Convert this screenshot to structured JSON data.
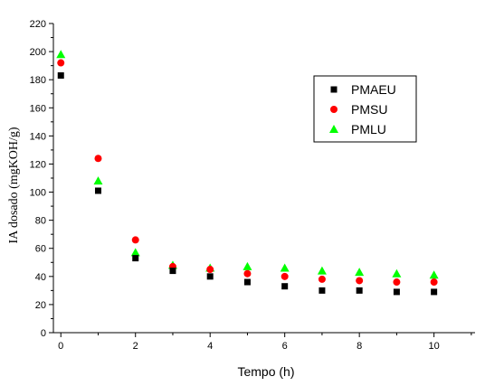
{
  "chart_data": {
    "type": "scatter",
    "xlabel": "Tempo (h)",
    "ylabel": "IA dosado (mgKOH/g)",
    "xlim": [
      -0.2,
      11.1
    ],
    "ylim": [
      0,
      220
    ],
    "xticks": [
      0,
      2,
      4,
      6,
      8,
      10
    ],
    "yticks": [
      0,
      20,
      40,
      60,
      80,
      100,
      120,
      140,
      160,
      180,
      200,
      220
    ],
    "grid": false,
    "legend_position": "top-right",
    "series": [
      {
        "name": "PMAEU",
        "marker": "square",
        "color": "#000000",
        "points": [
          [
            0,
            183
          ],
          [
            1,
            101
          ],
          [
            2,
            53
          ],
          [
            3,
            44
          ],
          [
            4,
            40
          ],
          [
            5,
            36
          ],
          [
            6,
            33
          ],
          [
            7,
            30
          ],
          [
            8,
            30
          ],
          [
            9,
            29
          ],
          [
            10,
            29
          ]
        ]
      },
      {
        "name": "PMSU",
        "marker": "circle",
        "color": "#ff0000",
        "points": [
          [
            0,
            192
          ],
          [
            1,
            124
          ],
          [
            2,
            66
          ],
          [
            3,
            47
          ],
          [
            4,
            45
          ],
          [
            5,
            42
          ],
          [
            6,
            40
          ],
          [
            7,
            38
          ],
          [
            8,
            37
          ],
          [
            9,
            36
          ],
          [
            10,
            36
          ]
        ]
      },
      {
        "name": "PMLU",
        "marker": "triangle",
        "color": "#00ff00",
        "points": [
          [
            0,
            198
          ],
          [
            1,
            108
          ],
          [
            2,
            57
          ],
          [
            3,
            48
          ],
          [
            4,
            46
          ],
          [
            5,
            47
          ],
          [
            6,
            46
          ],
          [
            7,
            44
          ],
          [
            8,
            43
          ],
          [
            9,
            42
          ],
          [
            10,
            41
          ]
        ]
      }
    ]
  }
}
